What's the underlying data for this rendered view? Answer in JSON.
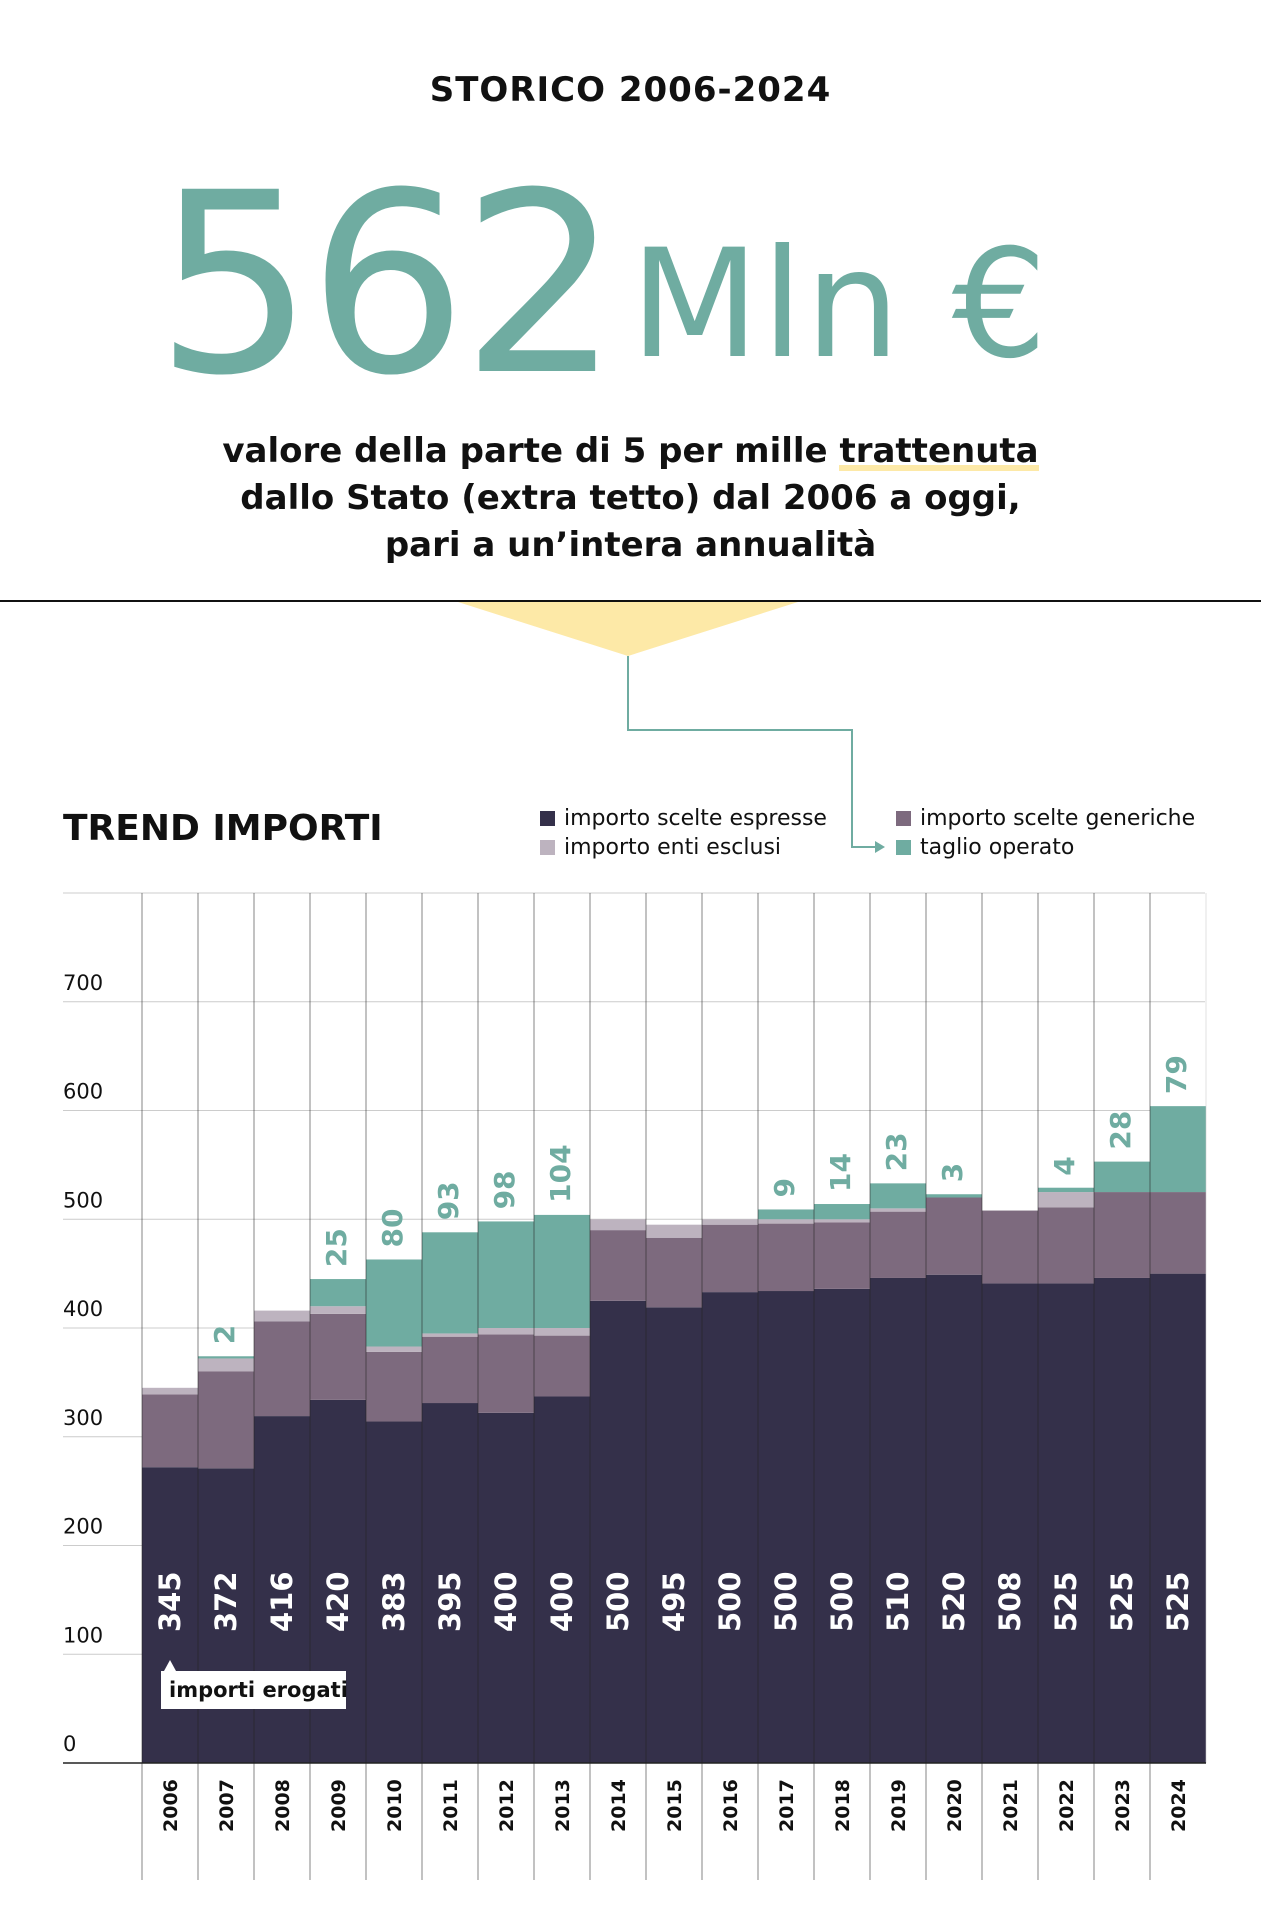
{
  "header": {
    "period_title": "STORICO 2006-2024",
    "hero_number": "562",
    "hero_unit": "Mln €",
    "subtitle_part1": "valore della parte di 5 per mille ",
    "subtitle_highlight": "trattenuta",
    "subtitle_line2": "dallo Stato (extra tetto) dal 2006 a oggi,",
    "subtitle_line3": "pari a un’intera annualità"
  },
  "legend": {
    "espresse": "importo scelte espresse",
    "generiche": "importo scelte generiche",
    "esclusi": "importo enti esclusi",
    "taglio": "taglio operato"
  },
  "annotation": {
    "erogati": "importi erogati"
  },
  "colors": {
    "espresse": "#34304a",
    "generiche": "#7d6a7e",
    "esclusi": "#bdb3bf",
    "taglio": "#6faca1",
    "accent_yellow": "#fde9a7"
  },
  "chart_data": {
    "type": "bar",
    "title": "TREND IMPORTI",
    "stacked": true,
    "categories": [
      "2006",
      "2007",
      "2008",
      "2009",
      "2010",
      "2011",
      "2012",
      "2013",
      "2014",
      "2015",
      "2016",
      "2017",
      "2018",
      "2019",
      "2020",
      "2021",
      "2022",
      "2023",
      "2024"
    ],
    "yticks": [
      "0",
      "100",
      "200",
      "300",
      "400",
      "500",
      "600",
      "700"
    ],
    "ylim": [
      0,
      800
    ],
    "series": [
      {
        "name": "importo scelte espresse",
        "values": [
          272,
          271,
          319,
          334,
          314,
          331,
          322,
          337,
          425,
          419,
          433,
          434,
          436,
          446,
          449,
          441,
          441,
          446,
          450
        ]
      },
      {
        "name": "importo scelte generiche",
        "values": [
          67,
          89,
          87,
          79,
          64,
          61,
          72,
          56,
          65,
          64,
          62,
          62,
          61,
          61,
          71,
          67,
          70,
          79,
          75
        ]
      },
      {
        "name": "importo enti esclusi",
        "values": [
          6,
          12,
          10,
          7,
          5,
          3,
          6,
          7,
          10,
          12,
          5,
          4,
          3,
          3,
          0,
          0,
          14,
          0,
          0
        ]
      },
      {
        "name": "taglio operato",
        "values": [
          0,
          2,
          0,
          25,
          80,
          93,
          98,
          104,
          0,
          0,
          0,
          9,
          14,
          23,
          3,
          0,
          4,
          28,
          79
        ]
      }
    ],
    "erogati": [
      "345",
      "372",
      "416",
      "420",
      "383",
      "395",
      "400",
      "400",
      "500",
      "495",
      "500",
      "500",
      "500",
      "510",
      "520",
      "508",
      "525",
      "525",
      "525"
    ],
    "taglio_labels": [
      "",
      "2",
      "",
      "25",
      "80",
      "93",
      "98",
      "104",
      "",
      "",
      "",
      "9",
      "14",
      "23",
      "3",
      "",
      "4",
      "28",
      "79"
    ],
    "grid": true
  }
}
